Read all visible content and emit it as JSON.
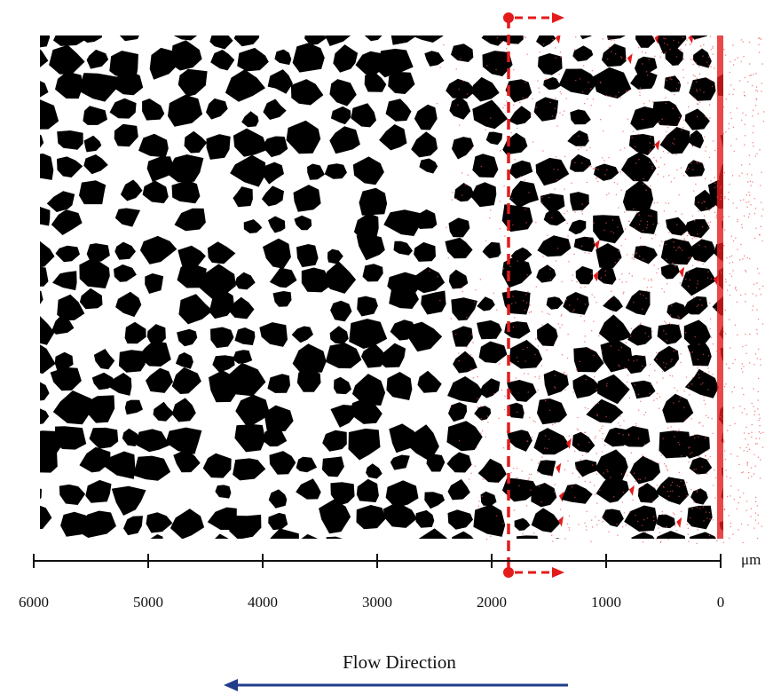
{
  "scale": {
    "ticks": [
      6000,
      5000,
      4000,
      3000,
      2000,
      1000,
      0
    ],
    "unit": "μm"
  },
  "caption": "Flow Direction"
}
